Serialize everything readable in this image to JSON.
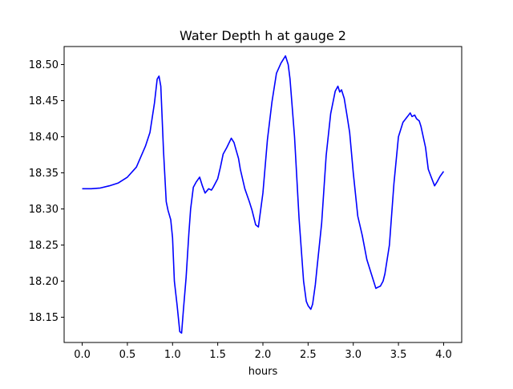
{
  "chart_data": {
    "type": "line",
    "title": "Water Depth h at gauge 2",
    "xlabel": "hours",
    "ylabel": "",
    "xlim": [
      -0.2,
      4.2
    ],
    "ylim": [
      18.115,
      18.525
    ],
    "xticks": [
      0.0,
      0.5,
      1.0,
      1.5,
      2.0,
      2.5,
      3.0,
      3.5,
      4.0
    ],
    "xtick_labels": [
      "0.0",
      "0.5",
      "1.0",
      "1.5",
      "2.0",
      "2.5",
      "3.0",
      "3.5",
      "4.0"
    ],
    "yticks": [
      18.15,
      18.2,
      18.25,
      18.3,
      18.35,
      18.4,
      18.45,
      18.5
    ],
    "ytick_labels": [
      "18.15",
      "18.20",
      "18.25",
      "18.30",
      "18.35",
      "18.40",
      "18.45",
      "18.50"
    ],
    "grid": false,
    "series": [
      {
        "color": "#0000ff",
        "x": [
          0.0,
          0.1,
          0.2,
          0.3,
          0.4,
          0.5,
          0.6,
          0.7,
          0.75,
          0.8,
          0.83,
          0.85,
          0.87,
          0.9,
          0.93,
          0.95,
          0.98,
          1.0,
          1.02,
          1.05,
          1.08,
          1.1,
          1.12,
          1.15,
          1.18,
          1.2,
          1.23,
          1.26,
          1.3,
          1.33,
          1.36,
          1.4,
          1.43,
          1.45,
          1.5,
          1.53,
          1.56,
          1.6,
          1.65,
          1.68,
          1.7,
          1.73,
          1.75,
          1.8,
          1.85,
          1.88,
          1.92,
          1.95,
          2.0,
          2.05,
          2.1,
          2.15,
          2.2,
          2.25,
          2.28,
          2.3,
          2.35,
          2.4,
          2.45,
          2.48,
          2.5,
          2.53,
          2.55,
          2.58,
          2.6,
          2.65,
          2.7,
          2.75,
          2.8,
          2.83,
          2.85,
          2.87,
          2.9,
          2.93,
          2.96,
          3.0,
          3.05,
          3.1,
          3.15,
          3.2,
          3.25,
          3.28,
          3.3,
          3.33,
          3.35,
          3.4,
          3.45,
          3.5,
          3.55,
          3.6,
          3.63,
          3.65,
          3.68,
          3.7,
          3.73,
          3.75,
          3.8,
          3.83,
          3.86,
          3.9,
          3.93,
          3.96,
          4.0
        ],
        "y": [
          18.328,
          18.328,
          18.329,
          18.332,
          18.336,
          18.344,
          18.358,
          18.387,
          18.406,
          18.447,
          18.48,
          18.484,
          18.47,
          18.38,
          18.31,
          18.298,
          18.285,
          18.26,
          18.2,
          18.167,
          18.13,
          18.128,
          18.16,
          18.205,
          18.265,
          18.3,
          18.33,
          18.337,
          18.344,
          18.332,
          18.322,
          18.328,
          18.326,
          18.33,
          18.342,
          18.358,
          18.376,
          18.385,
          18.398,
          18.392,
          18.383,
          18.37,
          18.355,
          18.328,
          18.31,
          18.298,
          18.278,
          18.275,
          18.322,
          18.396,
          18.448,
          18.488,
          18.502,
          18.512,
          18.5,
          18.48,
          18.4,
          18.287,
          18.2,
          18.172,
          18.166,
          18.161,
          18.168,
          18.195,
          18.22,
          18.28,
          18.374,
          18.432,
          18.463,
          18.47,
          18.462,
          18.465,
          18.453,
          18.43,
          18.406,
          18.35,
          18.29,
          18.263,
          18.23,
          18.21,
          18.19,
          18.192,
          18.193,
          18.2,
          18.21,
          18.25,
          18.335,
          18.4,
          18.42,
          18.428,
          18.433,
          18.428,
          18.43,
          18.425,
          18.422,
          18.414,
          18.385,
          18.355,
          18.345,
          18.332,
          18.338,
          18.345,
          18.352
        ]
      }
    ]
  }
}
